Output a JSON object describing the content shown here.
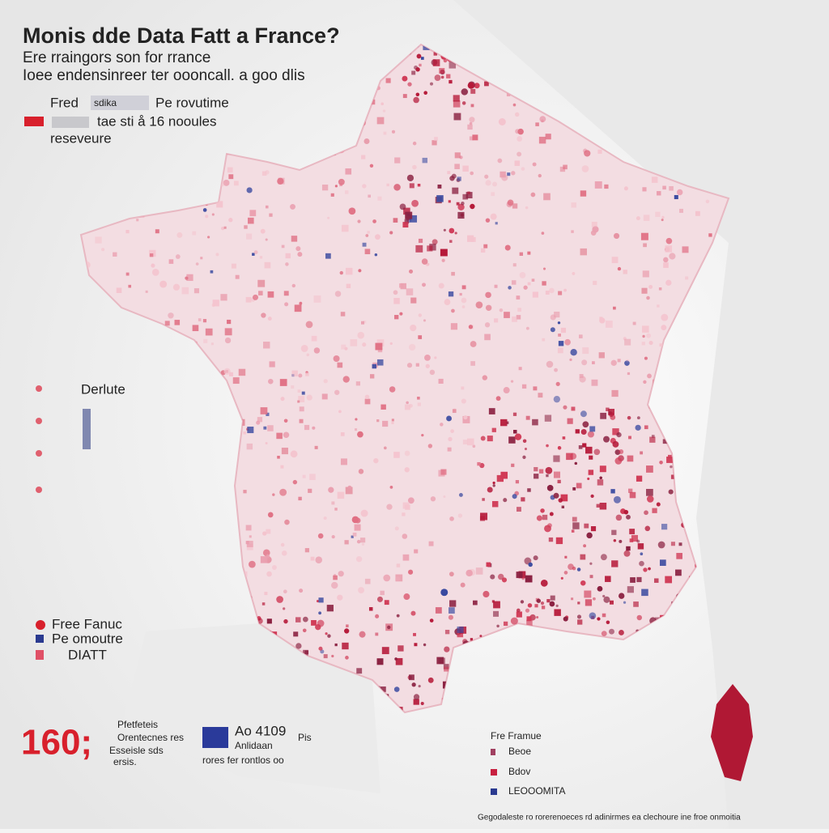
{
  "title": "Monis dde Data Fatt a France?",
  "subtitle": [
    "Ere rraingors son for rrance",
    "Ioee endensinreer ter oooncall. a goo dlis"
  ],
  "legend_top": [
    "Fred",
    "sdika",
    "Pe rovutime",
    "tae sti å 16 nooules",
    "reseveure"
  ],
  "side_label": "Derlute",
  "legend_left": [
    "Free Fanuc",
    "Pe omoutre",
    "DIATT"
  ],
  "stat": {
    "number": "160;",
    "lines": [
      "Pfetfeteis",
      "Orentecnes res",
      "Esseisle sds",
      "ersis."
    ]
  },
  "stat2": {
    "number": "Ao 4109",
    "lines": [
      "Anlidaan",
      "Pis",
      "rores fer rontlos oo"
    ]
  },
  "legend_right": [
    "Fre Framue",
    "Beoe",
    "Bdov",
    "LEOOOMITA"
  ],
  "footer": "Gegodaleste ro rorerenoeces rd adinirmes ea clechoure ine froe onmoitia"
}
